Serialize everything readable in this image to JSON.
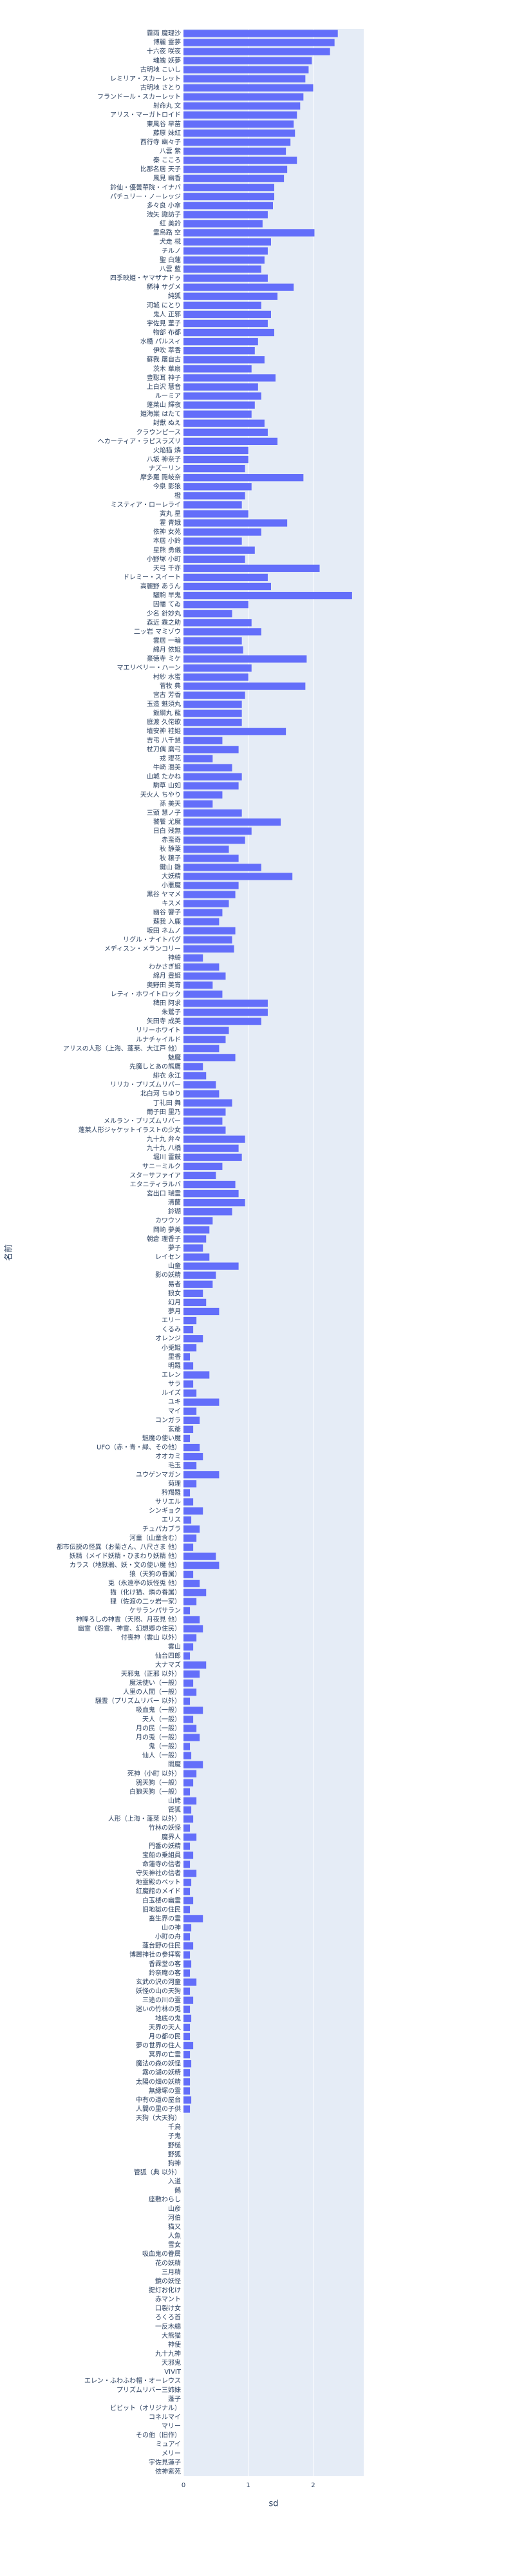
{
  "chart_data": {
    "type": "bar",
    "orientation": "h",
    "color": "#636efa",
    "grid": true,
    "xlabel": "sd",
    "ylabel": "名前",
    "xlim": [
      0,
      2.78
    ],
    "xticks": [
      0,
      1,
      2
    ],
    "categories": [
      "霧雨 魔理沙",
      "博麗 霊夢",
      "十六夜 咲夜",
      "魂魄 妖夢",
      "古明地 こいし",
      "レミリア・スカーレット",
      "古明地 さとり",
      "フランドール・スカーレット",
      "射命丸 文",
      "アリス・マーガトロイド",
      "東風谷 早苗",
      "藤原 妹紅",
      "西行寺 幽々子",
      "八雲 紫",
      "秦 こころ",
      "比那名居 天子",
      "風見 幽香",
      "鈴仙・優曇華院・イナバ",
      "パチュリー・ノーレッジ",
      "多々良 小傘",
      "洩矢 諏訪子",
      "紅 美鈴",
      "霊烏路 空",
      "犬走 椛",
      "チルノ",
      "聖 白蓮",
      "八雲 藍",
      "四季映姫・ヤマザナドゥ",
      "稀神 サグメ",
      "純狐",
      "河城 にとり",
      "鬼人 正邪",
      "宇佐見 菫子",
      "物部 布都",
      "水橋 パルスィ",
      "伊吹 萃香",
      "蘇我 屠自古",
      "茨木 華扇",
      "豊聡耳 神子",
      "上白沢 慧音",
      "ルーミア",
      "蓬莱山 輝夜",
      "姫海棠 はたて",
      "封獣 ぬえ",
      "クラウンピース",
      "ヘカーティア・ラピスラズリ",
      "火焔猫 燐",
      "八坂 神奈子",
      "ナズーリン",
      "摩多羅 隠岐奈",
      "今泉 影狼",
      "橙",
      "ミスティア・ローレライ",
      "寅丸 星",
      "霍 青娥",
      "依神 女苑",
      "本居 小鈴",
      "星熊 勇儀",
      "小野塚 小町",
      "天弓 千亦",
      "ドレミー・スイート",
      "高麗野 あうん",
      "驪駒 早鬼",
      "因幡 てゐ",
      "少名 針妙丸",
      "森近 霖之助",
      "二ッ岩 マミゾウ",
      "雲居 一輪",
      "綿月 依姫",
      "豪徳寺 ミケ",
      "マエリベリー・ハーン",
      "村紗 水蜜",
      "菅牧 典",
      "宮古 芳香",
      "玉造 魅須丸",
      "飯綱丸 龍",
      "庭渡 久侘歌",
      "埴安神 袿姫",
      "吉弔 八千慧",
      "杖刀偶 磨弓",
      "戎 瓔花",
      "牛崎 潤美",
      "山城 たかね",
      "駒草 山如",
      "天火人 ちやり",
      "孫 美天",
      "三頭 慧ノ子",
      "饕餮 尤魔",
      "日白 残無",
      "赤蛮奇",
      "秋 静葉",
      "秋 穣子",
      "鍵山 雛",
      "大妖精",
      "小悪魔",
      "黒谷 ヤマメ",
      "キスメ",
      "幽谷 響子",
      "蘇我 入鹿",
      "坂田 ネムノ",
      "リグル・ナイトバグ",
      "メディスン・メランコリー",
      "神綺",
      "わかさぎ姫",
      "綿月 豊姫",
      "奥野田 美宵",
      "レティ・ホワイトロック",
      "稗田 阿求",
      "朱鷺子",
      "矢田寺 成美",
      "リリーホワイト",
      "ルナチャイルド",
      "アリスの人形（上海、蓬莱、大江戸 他）",
      "魅魔",
      "先魔しとあの熊鷹",
      "緋衣 永江",
      "リリカ・プリズムリバー",
      "北白河 ちゆり",
      "丁礼田 舞",
      "爾子田 里乃",
      "メルラン・プリズムリバー",
      "蓬莱人形ジャケットイラストの少女",
      "九十九 弁々",
      "九十九 八橋",
      "堀川 雷鼓",
      "サニーミルク",
      "スターサファイア",
      "エタニティラルバ",
      "宮出口 瑞霊",
      "清蘭",
      "鈴瑚",
      "カワウソ",
      "岡崎 夢美",
      "朝倉 理香子",
      "夢子",
      "レイセン",
      "山童",
      "影の妖精",
      "易者",
      "狼女",
      "幻月",
      "夢月",
      "エリー",
      "くるみ",
      "オレンジ",
      "小兎姫",
      "里香",
      "明羅",
      "エレン",
      "サラ",
      "ルイズ",
      "ユキ",
      "マイ",
      "コンガラ",
      "玄爺",
      "魅魔の使い魔",
      "UFO（赤・青・緑、その他）",
      "オオカミ",
      "毛玉",
      "ユウゲンマガン",
      "菊理",
      "矜羯羅",
      "サリエル",
      "シンギョク",
      "エリス",
      "チュパカブラ",
      "河童（山童含む）",
      "都市伝説の怪異（お菊さん、八尺さま 他）",
      "妖精（メイド妖精・ひまわり妖精 他）",
      "カラス（地獄鴉、妖・文の使い魔 他）",
      "狼（天狗の眷属）",
      "兎（永遠亭の妖怪兎 他）",
      "猫（化け猫、燐の眷属）",
      "狸（佐渡の二ッ岩一家）",
      "ケサランパサラン",
      "神降ろしの神霊（天照、月夜見 他）",
      "幽霊（怨霊、神霊、幻想郷の住民）",
      "付喪神（雲山 以外）",
      "雲山",
      "仙台四郎",
      "大ナマズ",
      "天邪鬼（正邪 以外）",
      "魔法使い（一般）",
      "人里の人間（一般）",
      "騒霊（プリズムリバー 以外）",
      "吸血鬼（一般）",
      "天人（一般）",
      "月の民（一般）",
      "月の兎（一般）",
      "鬼（一般）",
      "仙人（一般）",
      "閻魔",
      "死神（小町 以外）",
      "鴉天狗（一般）",
      "白狼天狗（一般）",
      "山姥",
      "管狐",
      "人形（上海・蓬莱 以外）",
      "竹林の妖怪",
      "魔界人",
      "門番の妖精",
      "宝船の乗組員",
      "命蓮寺の信者",
      "守矢神社の信者",
      "地霊殿のペット",
      "紅魔館のメイド",
      "白玉楼の幽霊",
      "旧地獄の住民",
      "畜生界の霊",
      "山の神",
      "小町の舟",
      "蓮台野の住民",
      "博麗神社の参拝客",
      "香霖堂の客",
      "鈴奈庵の客",
      "玄武の沢の河童",
      "妖怪の山の天狗",
      "三途の川の霊",
      "迷いの竹林の兎",
      "地底の鬼",
      "天界の天人",
      "月の都の民",
      "夢の世界の住人",
      "冥界の亡霊",
      "魔法の森の妖怪",
      "霧の湖の妖精",
      "太陽の畑の妖精",
      "無縁塚の霊",
      "中有の道の屋台",
      "人間の里の子供",
      "天狗（大天狗）",
      "千鳥",
      "子鬼",
      "野槌",
      "野狐",
      "狗神",
      "管狐（典 以外）",
      "入道",
      "鵺",
      "座敷わらし",
      "山彦",
      "河伯",
      "猫又",
      "人魚",
      "雪女",
      "吸血鬼の眷属",
      "花の妖精",
      "三月精",
      "鏡の妖怪",
      "提灯お化け",
      "赤マント",
      "口裂け女",
      "ろくろ首",
      "一反木綿",
      "大熊猫",
      "神使",
      "九十九神",
      "天邪鬼",
      "VIVIT",
      "エレン・ふわふわ帽・オーレウス",
      "プリズムリバー三姉妹",
      "蓬子",
      "ビビット（オリジナル）",
      "コネルマイ",
      "マリー",
      "その他（旧作）",
      "ミュアイ",
      "メリー",
      "宇佐見蓮子",
      "依神紫苑"
    ],
    "values": [
      2.38,
      2.33,
      2.26,
      1.98,
      1.93,
      1.88,
      2.0,
      1.85,
      1.8,
      1.75,
      1.7,
      1.72,
      1.65,
      1.58,
      1.75,
      1.6,
      1.55,
      1.4,
      1.4,
      1.38,
      1.3,
      1.22,
      2.02,
      1.35,
      1.3,
      1.25,
      1.2,
      1.3,
      1.7,
      1.45,
      1.2,
      1.35,
      1.3,
      1.4,
      1.15,
      1.1,
      1.25,
      1.05,
      1.42,
      1.15,
      1.2,
      1.1,
      1.05,
      1.25,
      1.3,
      1.45,
      1.0,
      1.0,
      0.95,
      1.85,
      1.05,
      0.95,
      0.9,
      1.0,
      1.6,
      1.2,
      0.9,
      1.1,
      0.95,
      2.1,
      1.3,
      1.35,
      2.6,
      1.0,
      0.75,
      1.05,
      1.2,
      0.9,
      0.92,
      1.9,
      1.05,
      1.0,
      1.88,
      0.95,
      0.9,
      0.9,
      0.9,
      1.58,
      0.6,
      0.85,
      0.45,
      0.75,
      0.9,
      0.85,
      0.6,
      0.45,
      0.9,
      1.5,
      1.05,
      0.95,
      0.7,
      0.85,
      1.2,
      1.68,
      0.85,
      0.8,
      0.7,
      0.6,
      0.55,
      0.8,
      0.75,
      0.78,
      0.3,
      0.55,
      0.65,
      0.45,
      0.6,
      1.3,
      1.3,
      1.2,
      0.7,
      0.65,
      0.55,
      0.8,
      0.3,
      0.35,
      0.5,
      0.55,
      0.75,
      0.65,
      0.6,
      0.65,
      0.95,
      0.85,
      0.9,
      0.6,
      0.5,
      0.8,
      0.85,
      0.95,
      0.75,
      0.45,
      0.4,
      0.35,
      0.3,
      0.4,
      0.85,
      0.5,
      0.45,
      0.3,
      0.35,
      0.55,
      0.2,
      0.15,
      0.3,
      0.2,
      0.1,
      0.15,
      0.4,
      0.15,
      0.2,
      0.55,
      0.2,
      0.25,
      0.15,
      0.1,
      0.25,
      0.3,
      0.2,
      0.55,
      0.2,
      0.1,
      0.15,
      0.3,
      0.12,
      0.25,
      0.2,
      0.15,
      0.5,
      0.55,
      0.15,
      0.25,
      0.35,
      0.2,
      0.1,
      0.25,
      0.3,
      0.2,
      0.15,
      0.1,
      0.35,
      0.25,
      0.15,
      0.2,
      0.1,
      0.3,
      0.15,
      0.2,
      0.25,
      0.1,
      0.12,
      0.3,
      0.2,
      0.15,
      0.1,
      0.2,
      0.12,
      0.15,
      0.1,
      0.2,
      0.1,
      0.15,
      0.1,
      0.2,
      0.12,
      0.1,
      0.15,
      0.1,
      0.3,
      0.12,
      0.1,
      0.15,
      0.1,
      0.12,
      0.1,
      0.2,
      0.1,
      0.15,
      0.1,
      0.12,
      0.1,
      0.1,
      0.15,
      0.1,
      0.12,
      0.1,
      0.1,
      0.1,
      0.12,
      0.1,
      0,
      0,
      0,
      0,
      0,
      0,
      0,
      0,
      0,
      0,
      0,
      0,
      0,
      0,
      0,
      0,
      0,
      0,
      0,
      0,
      0,
      0,
      0,
      0,
      0,
      0,
      0,
      0,
      0,
      0,
      0,
      0,
      0,
      0,
      0,
      0,
      0,
      0,
      0,
      0
    ]
  }
}
